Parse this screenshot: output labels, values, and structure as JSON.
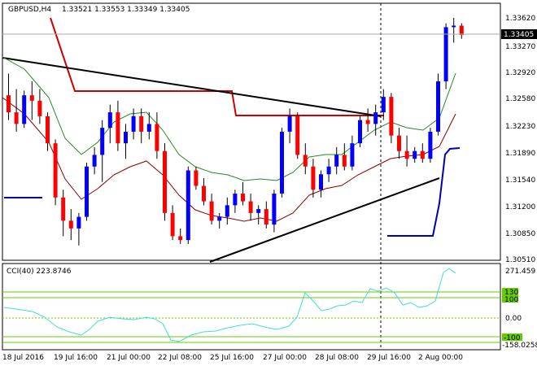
{
  "header": {
    "symbol_tf": "GBPUSD,H4",
    "ohlc": "1.33521 1.33553 1.33349 1.33405"
  },
  "price_axis": {
    "ticks": [
      "1.33620",
      "1.33270",
      "1.32920",
      "1.32580",
      "1.32230",
      "1.31890",
      "1.31540",
      "1.31200",
      "1.30850",
      "1.30510"
    ],
    "current": "1.33405"
  },
  "cci": {
    "label": "CCI(40) 223.8746",
    "ticks": {
      "max": "271.459",
      "l130": "130",
      "l100": "100",
      "zero": "0.00",
      "lm100": "-100",
      "min": "-158.0258"
    }
  },
  "time_axis": [
    "18 Jul 2016",
    "19 Jul 16:00",
    "21 Jul 00:00",
    "22 Jul 08:00",
    "25 Jul 16:00",
    "27 Jul 00:00",
    "28 Jul 08:00",
    "29 Jul 16:00",
    "2 Aug 00:00"
  ],
  "colors": {
    "bull": "#0000ff",
    "bear": "#ff0000",
    "ma_green": "#228b22",
    "ma_dark": "#8b0000",
    "cci": "#40e0d0",
    "level": "#66cc00",
    "trend": "#000000",
    "channel": "#cc0000",
    "channel_blue": "#0000aa"
  },
  "chart_data": {
    "type": "candlestick",
    "ohlc": [
      [
        1.3262,
        1.329,
        1.323,
        1.324
      ],
      [
        1.324,
        1.327,
        1.3215,
        1.3225
      ],
      [
        1.3225,
        1.3268,
        1.322,
        1.3262
      ],
      [
        1.3262,
        1.328,
        1.323,
        1.3255
      ],
      [
        1.3255,
        1.327,
        1.3225,
        1.3235
      ],
      [
        1.3235,
        1.324,
        1.319,
        1.32
      ],
      [
        1.32,
        1.3205,
        1.312,
        1.313
      ],
      [
        1.313,
        1.314,
        1.308,
        1.31
      ],
      [
        1.31,
        1.3115,
        1.3075,
        1.309
      ],
      [
        1.309,
        1.311,
        1.3068,
        1.3105
      ],
      [
        1.3105,
        1.3175,
        1.31,
        1.317
      ],
      [
        1.317,
        1.3195,
        1.316,
        1.3185
      ],
      [
        1.3185,
        1.323,
        1.315,
        1.322
      ],
      [
        1.322,
        1.325,
        1.32,
        1.324
      ],
      [
        1.324,
        1.3255,
        1.319,
        1.32
      ],
      [
        1.32,
        1.3225,
        1.318,
        1.3215
      ],
      [
        1.3215,
        1.3245,
        1.3205,
        1.3235
      ],
      [
        1.3235,
        1.3245,
        1.32,
        1.3215
      ],
      [
        1.3215,
        1.324,
        1.3205,
        1.3225
      ],
      [
        1.3225,
        1.324,
        1.318,
        1.319
      ],
      [
        1.319,
        1.32,
        1.31,
        1.311
      ],
      [
        1.311,
        1.312,
        1.3075,
        1.308
      ],
      [
        1.308,
        1.309,
        1.307,
        1.3075
      ],
      [
        1.3075,
        1.317,
        1.307,
        1.3165
      ],
      [
        1.3165,
        1.317,
        1.314,
        1.3145
      ],
      [
        1.3145,
        1.3155,
        1.312,
        1.3125
      ],
      [
        1.3125,
        1.3135,
        1.3095,
        1.31
      ],
      [
        1.31,
        1.311,
        1.309,
        1.3105
      ],
      [
        1.3105,
        1.313,
        1.3095,
        1.312
      ],
      [
        1.312,
        1.314,
        1.311,
        1.3135
      ],
      [
        1.3135,
        1.315,
        1.312,
        1.3125
      ],
      [
        1.3125,
        1.3135,
        1.31,
        1.311
      ],
      [
        1.311,
        1.312,
        1.3095,
        1.3115
      ],
      [
        1.3115,
        1.3125,
        1.309,
        1.3095
      ],
      [
        1.3095,
        1.314,
        1.3085,
        1.3135
      ],
      [
        1.3135,
        1.322,
        1.313,
        1.3215
      ],
      [
        1.3215,
        1.3245,
        1.32,
        1.3235
      ],
      [
        1.3235,
        1.324,
        1.318,
        1.3185
      ],
      [
        1.3185,
        1.32,
        1.316,
        1.317
      ],
      [
        1.317,
        1.318,
        1.313,
        1.314
      ],
      [
        1.314,
        1.3165,
        1.313,
        1.316
      ],
      [
        1.316,
        1.318,
        1.315,
        1.317
      ],
      [
        1.317,
        1.3195,
        1.316,
        1.3185
      ],
      [
        1.3185,
        1.32,
        1.3165,
        1.317
      ],
      [
        1.317,
        1.321,
        1.3165,
        1.32
      ],
      [
        1.32,
        1.3235,
        1.3195,
        1.323
      ],
      [
        1.323,
        1.3245,
        1.3215,
        1.3225
      ],
      [
        1.3225,
        1.325,
        1.321,
        1.324
      ],
      [
        1.324,
        1.327,
        1.323,
        1.326
      ],
      [
        1.326,
        1.3265,
        1.32,
        1.321
      ],
      [
        1.321,
        1.322,
        1.318,
        1.319
      ],
      [
        1.319,
        1.321,
        1.317,
        1.318
      ],
      [
        1.318,
        1.3195,
        1.3175,
        1.319
      ],
      [
        1.319,
        1.32,
        1.3175,
        1.318
      ],
      [
        1.318,
        1.322,
        1.3175,
        1.3215
      ],
      [
        1.3215,
        1.329,
        1.321,
        1.328
      ],
      [
        1.328,
        1.3355,
        1.327,
        1.335
      ],
      [
        1.335,
        1.3362,
        1.333,
        1.3352
      ],
      [
        1.3352,
        1.3355,
        1.3335,
        1.334
      ]
    ]
  }
}
